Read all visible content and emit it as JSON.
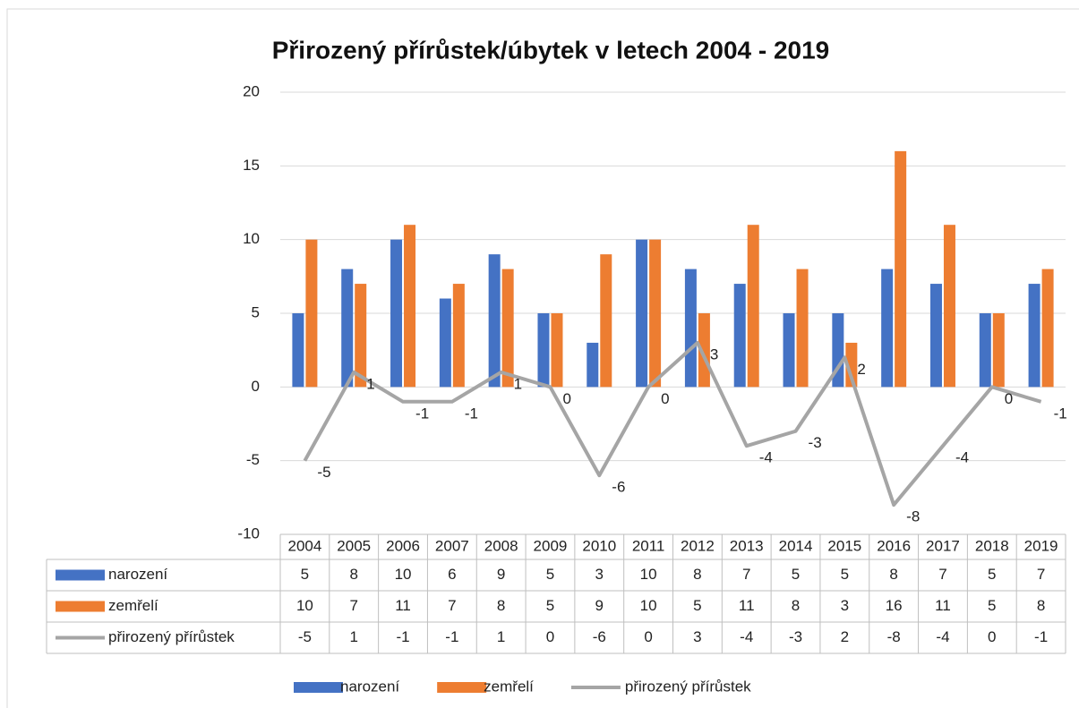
{
  "chart_data": {
    "type": "bar",
    "title": "Přirozený přírůstek/úbytek v letech 2004 - 2019",
    "categories": [
      "2004",
      "2005",
      "2006",
      "2007",
      "2008",
      "2009",
      "2010",
      "2011",
      "2012",
      "2013",
      "2014",
      "2015",
      "2016",
      "2017",
      "2018",
      "2019"
    ],
    "series": [
      {
        "name": "narození",
        "color": "#4472c4",
        "values": [
          5,
          8,
          10,
          6,
          9,
          5,
          3,
          10,
          8,
          7,
          5,
          5,
          8,
          7,
          5,
          7
        ]
      },
      {
        "name": "zemřelí",
        "color": "#ed7d31",
        "values": [
          10,
          7,
          11,
          7,
          8,
          5,
          9,
          10,
          5,
          11,
          8,
          3,
          16,
          11,
          5,
          8
        ]
      },
      {
        "name": "přirozený přírůstek",
        "color": "#a5a5a5",
        "type": "line",
        "values": [
          -5,
          1,
          -1,
          -1,
          1,
          0,
          -6,
          0,
          3,
          -4,
          -3,
          2,
          -8,
          -4,
          0,
          -1
        ]
      }
    ],
    "ylim": [
      -10,
      20
    ],
    "yticks": [
      -10,
      -5,
      0,
      5,
      10,
      15,
      20
    ],
    "grid": true,
    "legend": "bottom"
  }
}
